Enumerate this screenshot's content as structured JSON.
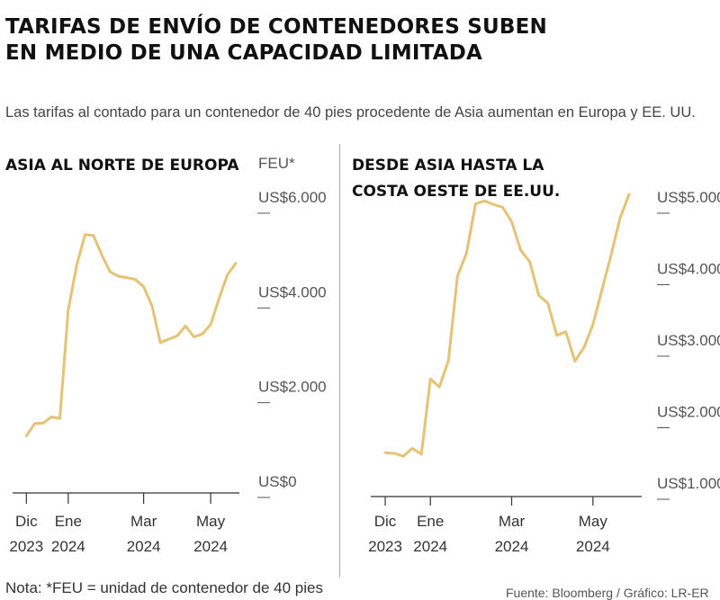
{
  "title": {
    "line1": "TARIFAS DE ENVÍO DE CONTENEDORES SUBEN",
    "line2": "EN MEDIO DE UNA CAPACIDAD LIMITADA"
  },
  "subtitle": "Las tarifas al contado para un contenedor de 40 pies procedente de Asia aumentan en Europa y EE. UU.",
  "note": "Nota: *FEU = unidad de contenedor de 40 pies",
  "source": "Fuente: Bloomberg / Gráfico: LR-ER",
  "colors": {
    "line": "#e6c274",
    "text": "#1a1a1a",
    "axis": "#333333"
  },
  "chart_data": [
    {
      "type": "line",
      "title_lines": [
        "ASIA AL NORTE DE EUROPA"
      ],
      "unit_label": "FEU*",
      "ylim": [
        0,
        6000
      ],
      "y_ticks": [
        {
          "value": 6000,
          "label": "US$6.000"
        },
        {
          "value": 4000,
          "label": "US$4.000"
        },
        {
          "value": 2000,
          "label": "US$2.000"
        },
        {
          "value": 0,
          "label": "US$0"
        }
      ],
      "x_ticks": [
        {
          "week": 0,
          "month": "Dic",
          "year": "2023"
        },
        {
          "week": 5,
          "month": "Ene",
          "year": "2024"
        },
        {
          "week": 14,
          "month": "Mar",
          "year": "2024"
        },
        {
          "week": 22,
          "month": "May",
          "year": "2024"
        }
      ],
      "x_range": [
        -1,
        25
      ],
      "points": [
        [
          0,
          920
        ],
        [
          1,
          1180
        ],
        [
          2,
          1190
        ],
        [
          3,
          1320
        ],
        [
          4,
          1290
        ],
        [
          5,
          3580
        ],
        [
          6,
          4520
        ],
        [
          7,
          5170
        ],
        [
          8,
          5150
        ],
        [
          9,
          4740
        ],
        [
          10,
          4380
        ],
        [
          11,
          4290
        ],
        [
          12,
          4260
        ],
        [
          13,
          4220
        ],
        [
          14,
          4070
        ],
        [
          15,
          3660
        ],
        [
          16,
          2890
        ],
        [
          17,
          2960
        ],
        [
          18,
          3030
        ],
        [
          19,
          3240
        ],
        [
          20,
          3010
        ],
        [
          21,
          3070
        ],
        [
          22,
          3270
        ],
        [
          23,
          3820
        ],
        [
          24,
          4320
        ],
        [
          25,
          4560
        ]
      ]
    },
    {
      "type": "line",
      "title_lines": [
        "DESDE ASIA HASTA LA",
        "COSTA OESTE DE EE.UU."
      ],
      "ylim": [
        1000,
        5000
      ],
      "y_ticks": [
        {
          "value": 5000,
          "label": "US$5.000"
        },
        {
          "value": 4000,
          "label": "US$4.000"
        },
        {
          "value": 3000,
          "label": "US$3.000"
        },
        {
          "value": 2000,
          "label": "US$2.000"
        },
        {
          "value": 1000,
          "label": "US$1.000"
        }
      ],
      "x_ticks": [
        {
          "week": 0,
          "month": "Dic",
          "year": "2023"
        },
        {
          "week": 5,
          "month": "Ene",
          "year": "2024"
        },
        {
          "week": 14,
          "month": "Mar",
          "year": "2024"
        },
        {
          "week": 23,
          "month": "May",
          "year": "2024"
        }
      ],
      "x_range": [
        -1,
        28
      ],
      "points": [
        [
          0,
          1400
        ],
        [
          1,
          1390
        ],
        [
          2,
          1350
        ],
        [
          3,
          1460
        ],
        [
          4,
          1380
        ],
        [
          5,
          2430
        ],
        [
          6,
          2320
        ],
        [
          7,
          2690
        ],
        [
          8,
          3870
        ],
        [
          9,
          4190
        ],
        [
          10,
          4880
        ],
        [
          11,
          4920
        ],
        [
          12,
          4870
        ],
        [
          13,
          4830
        ],
        [
          14,
          4630
        ],
        [
          15,
          4230
        ],
        [
          16,
          4070
        ],
        [
          17,
          3600
        ],
        [
          18,
          3490
        ],
        [
          19,
          3040
        ],
        [
          20,
          3090
        ],
        [
          21,
          2680
        ],
        [
          22,
          2870
        ],
        [
          23,
          3190
        ],
        [
          24,
          3680
        ],
        [
          25,
          4160
        ],
        [
          26,
          4680
        ],
        [
          27,
          5010
        ]
      ]
    }
  ]
}
